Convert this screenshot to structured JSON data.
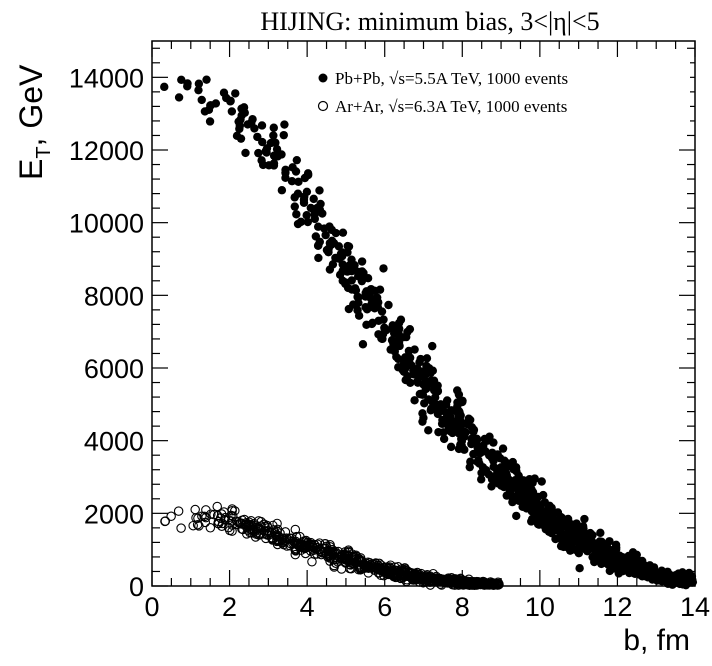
{
  "chart_data": {
    "type": "scatter",
    "title": "HIJING: minimum bias, 3<|η|<5",
    "xlabel": "b, fm",
    "ylabel_main": "E",
    "ylabel_sub": "T",
    "ylabel_unit": ", GeV",
    "xlim": [
      0,
      14
    ],
    "ylim": [
      0,
      15000
    ],
    "x_ticks": [
      "0",
      "2",
      "4",
      "6",
      "8",
      "10",
      "12",
      "14"
    ],
    "y_ticks": [
      "0",
      "2000",
      "4000",
      "6000",
      "8000",
      "10000",
      "12000",
      "14000"
    ],
    "grid": false,
    "legend_position": "top-right",
    "series": [
      {
        "name": "Pb+Pb, √s=5.5A TeV, 1000 events",
        "marker": "filled-circle",
        "color": "#000000",
        "points_shown": 1000,
        "trend_b": [
          0,
          1,
          2,
          3,
          4,
          5,
          6,
          7,
          8,
          9,
          10,
          11,
          12,
          13,
          14
        ],
        "trend_et": [
          14000,
          13500,
          13000,
          12200,
          10500,
          8800,
          7200,
          5600,
          4300,
          3100,
          2100,
          1300,
          700,
          300,
          120
        ],
        "spread_et": [
          600,
          600,
          700,
          800,
          900,
          900,
          850,
          800,
          700,
          600,
          500,
          400,
          300,
          200,
          120
        ]
      },
      {
        "name": "Ar+Ar, √s=6.3A TeV, 1000 events",
        "marker": "open-circle",
        "color": "#000000",
        "points_shown": 800,
        "trend_b": [
          0,
          1,
          2,
          3,
          4,
          5,
          6,
          7,
          8,
          9
        ],
        "trend_et": [
          1900,
          1900,
          1800,
          1500,
          1100,
          750,
          420,
          220,
          90,
          40
        ],
        "spread_et": [
          250,
          250,
          250,
          230,
          220,
          190,
          150,
          110,
          70,
          40
        ]
      }
    ]
  }
}
